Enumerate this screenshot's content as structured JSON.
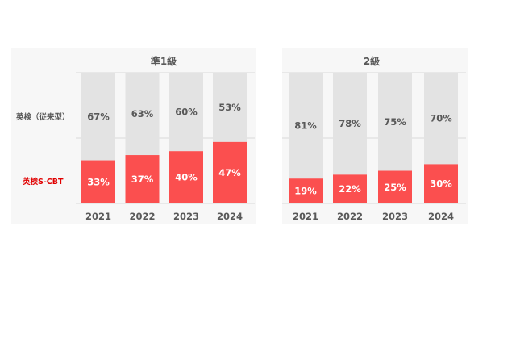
{
  "chart_data": {
    "type": "bar",
    "stacked": true,
    "series_names": [
      "英検（従来型）",
      "英検S-CBT"
    ],
    "colors": {
      "conventional": "#e3e3e3",
      "scbt": "#fb4f4f",
      "label_dark": "#595959",
      "label_light": "#ffffff",
      "scbt_label": "#e00000",
      "panel_bg": "#f7f7f7"
    },
    "panels": [
      {
        "title": "準1級",
        "categories": [
          "2021",
          "2022",
          "2023",
          "2024"
        ],
        "series": [
          {
            "name": "英検（従来型）",
            "values": [
              67,
              63,
              60,
              53
            ],
            "labels": [
              "67%",
              "63%",
              "60%",
              "53%"
            ]
          },
          {
            "name": "英検S-CBT",
            "values": [
              33,
              37,
              40,
              47
            ],
            "labels": [
              "33%",
              "37%",
              "40%",
              "47%"
            ]
          }
        ],
        "ylim": [
          0,
          100
        ]
      },
      {
        "title": "2級",
        "categories": [
          "2021",
          "2022",
          "2023",
          "2024"
        ],
        "series": [
          {
            "name": "英検（従来型）",
            "values": [
              81,
              78,
              75,
              70
            ],
            "labels": [
              "81%",
              "78%",
              "75%",
              "70%"
            ]
          },
          {
            "name": "英検S-CBT",
            "values": [
              19,
              22,
              25,
              30
            ],
            "labels": [
              "19%",
              "22%",
              "25%",
              "30%"
            ]
          }
        ],
        "ylim": [
          0,
          100
        ]
      }
    ]
  }
}
